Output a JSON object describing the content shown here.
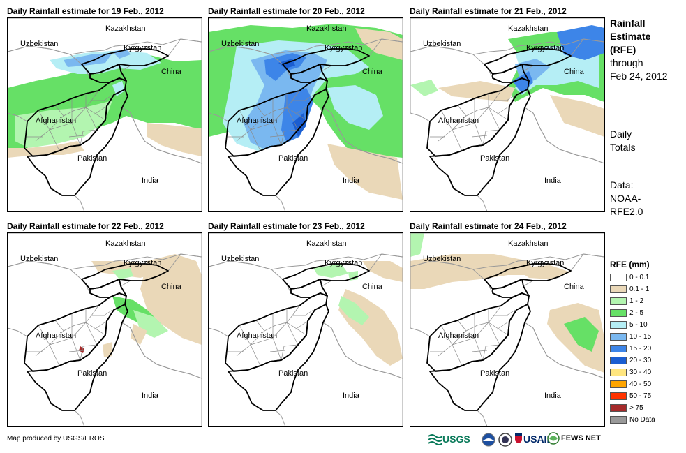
{
  "panels": [
    {
      "title": "Daily Rainfall estimate for 19 Feb., 2012",
      "variant": "p19"
    },
    {
      "title": "Daily Rainfall estimate for 20 Feb., 2012",
      "variant": "p20"
    },
    {
      "title": "Daily Rainfall estimate for 21 Feb., 2012",
      "variant": "p21"
    },
    {
      "title": "Daily Rainfall estimate for 22 Feb., 2012",
      "variant": "p22"
    },
    {
      "title": "Daily Rainfall estimate for 23 Feb., 2012",
      "variant": "p23"
    },
    {
      "title": "Daily Rainfall estimate for 24 Feb., 2012",
      "variant": "p24"
    }
  ],
  "countries": [
    "Kazakhstan",
    "Uzbekistan",
    "Kyrgyzstan",
    "China",
    "Afghanistan",
    "Pakistan",
    "India"
  ],
  "sidebar": {
    "title_lines": [
      "Rainfall",
      "Estimate",
      "(RFE)"
    ],
    "through_lines": [
      "through",
      "Feb 24, 2012"
    ],
    "daily_lines": [
      "Daily",
      "Totals"
    ],
    "data_lines": [
      "Data:",
      "NOAA-",
      "RFE2.0"
    ]
  },
  "legend": {
    "title": "RFE (mm)",
    "items": [
      {
        "label": "0 - 0.1",
        "color": "#ffffff"
      },
      {
        "label": "0.1 - 1",
        "color": "#ead8b8"
      },
      {
        "label": "1 - 2",
        "color": "#b3f5b0"
      },
      {
        "label": "2 - 5",
        "color": "#66e066"
      },
      {
        "label": "5 - 10",
        "color": "#b5eef5"
      },
      {
        "label": "10 - 15",
        "color": "#7ab8f0"
      },
      {
        "label": "15 - 20",
        "color": "#3d85e8"
      },
      {
        "label": "20 - 30",
        "color": "#1b5ed1"
      },
      {
        "label": "30 - 40",
        "color": "#ffe680"
      },
      {
        "label": "40 - 50",
        "color": "#ffa500"
      },
      {
        "label": "50 - 75",
        "color": "#ff3300"
      },
      {
        "label": "> 75",
        "color": "#a52a2a"
      },
      {
        "label": "No Data",
        "color": "#999999"
      }
    ]
  },
  "credit": "Map produced by USGS/EROS",
  "logos": {
    "usgs": "USGS",
    "usaid": "USAID",
    "fews": "FEWS NET"
  }
}
